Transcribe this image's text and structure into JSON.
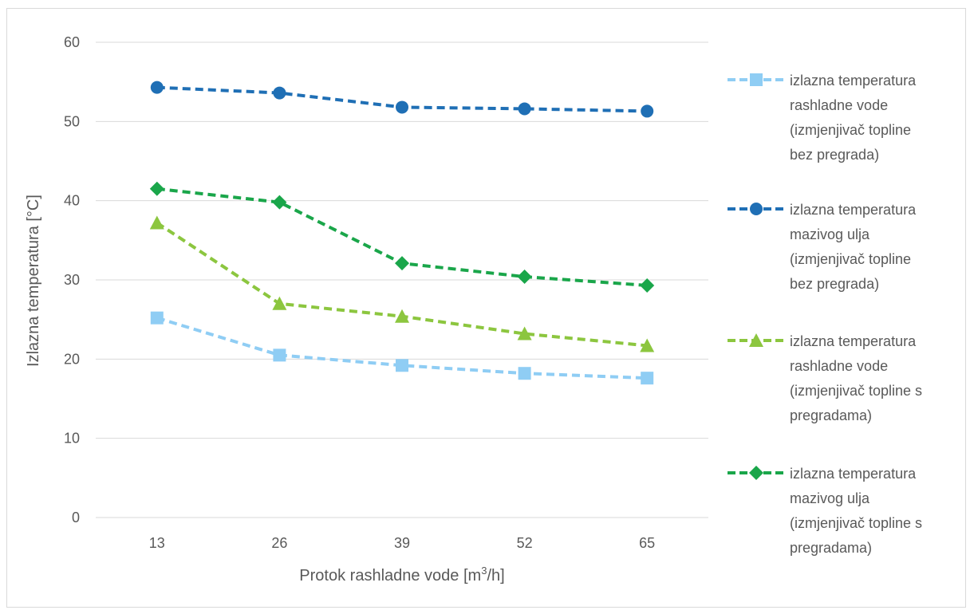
{
  "chart_data": {
    "type": "line",
    "title": "",
    "x": [
      "13",
      "26",
      "39",
      "52",
      "65"
    ],
    "xlabel": {
      "base": "Protok rashladne vode [m",
      "sup": "3",
      "tail": "/h]"
    },
    "ylabel": "Izlazna temperatura [°C]",
    "ylim": [
      0,
      60
    ],
    "yticks": [
      0,
      10,
      20,
      30,
      40,
      50,
      60
    ],
    "grid": "horizontal",
    "legend_position": "right",
    "series": [
      {
        "name": "izlazna temperatura rashladne vode (izmjenjivač topline bez pregrada)",
        "legend_lines": [
          "izlazna temperatura",
          "rashladne vode",
          "(izmjenjivač topline",
          "bez pregrada)"
        ],
        "marker": "square",
        "color": "#8fcdf4",
        "values": [
          25.2,
          20.5,
          19.2,
          18.2,
          17.6
        ]
      },
      {
        "name": "izlazna temperatura mazivog ulja (izmjenjivač topline bez pregrada)",
        "legend_lines": [
          "izlazna temperatura",
          "mazivog ulja",
          "(izmjenjivač topline",
          "bez pregrada)"
        ],
        "marker": "circle",
        "color": "#1f6fb5",
        "values": [
          54.3,
          53.6,
          51.8,
          51.6,
          51.3
        ]
      },
      {
        "name": "izlazna temperatura rashladne vode (izmjenjivač topline s pregradama)",
        "legend_lines": [
          "izlazna temperatura",
          "rashladne vode",
          "(izmjenjivač topline s",
          "pregradama)"
        ],
        "marker": "triangle",
        "color": "#8cc63f",
        "values": [
          37.2,
          27.0,
          25.4,
          23.2,
          21.7
        ]
      },
      {
        "name": "izlazna temperatura mazivog ulja (izmjenjivač topline s pregradama)",
        "legend_lines": [
          "izlazna temperatura",
          "mazivog ulja",
          "(izmjenjivač topline s",
          "pregradama)"
        ],
        "marker": "diamond",
        "color": "#1aa64a",
        "values": [
          41.5,
          39.8,
          32.1,
          30.4,
          29.3
        ]
      }
    ]
  }
}
